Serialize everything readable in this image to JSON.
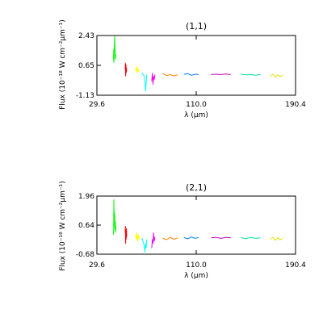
{
  "chart_data": [
    {
      "type": "line",
      "title": "(1,1)",
      "xlabel": "λ (μm)",
      "ylabel": "Flux (10⁻¹⁸ W cm⁻²μm⁻¹)",
      "xlim": [
        29.6,
        190.4
      ],
      "ylim": [
        -1.13,
        2.43
      ],
      "xticks": [
        "29.6",
        "110.0",
        "190.4"
      ],
      "yticks": [
        "2.43",
        "0.65",
        "-1.13"
      ],
      "series": [
        {
          "color": "#00ff00",
          "x": [
            43.0,
            43.1,
            43.2,
            43.3,
            43.4,
            43.6,
            43.8,
            44.0,
            44.2,
            44.5,
            44.7,
            44.9,
            45.0
          ],
          "y": [
            1.0,
            1.4,
            1.6,
            1.1,
            0.8,
            1.4,
            2.0,
            2.4,
            1.8,
            1.2,
            1.0,
            1.3,
            1.1
          ]
        },
        {
          "color": "#ff0000",
          "x": [
            52.5,
            52.7,
            52.9,
            53.1,
            53.3,
            53.5,
            53.7
          ],
          "y": [
            0.4,
            0.8,
            0.0,
            0.7,
            0.2,
            0.5,
            0.3
          ]
        },
        {
          "color": "#ffff00",
          "x": [
            61.0,
            61.5,
            62.0,
            62.5,
            63.0,
            63.5,
            64.0
          ],
          "y": [
            0.5,
            0.3,
            0.6,
            0.2,
            0.4,
            0.3,
            0.3
          ]
        },
        {
          "color": "#00ffff",
          "x": [
            66.0,
            67.0,
            68.0,
            68.5,
            69.0,
            69.5,
            70.0
          ],
          "y": [
            0.2,
            0.1,
            0.0,
            -0.3,
            -0.9,
            -0.4,
            0.1
          ]
        },
        {
          "color": "#ff00ff",
          "x": [
            74.0,
            74.5,
            75.0,
            75.5,
            76.0,
            76.5
          ],
          "y": [
            -0.3,
            0.2,
            -0.5,
            0.0,
            -0.2,
            0.1
          ]
        },
        {
          "color": "#ff8000",
          "x": [
            83.0,
            86.0,
            89.0,
            92.0,
            95.0
          ],
          "y": [
            0.16,
            0.04,
            0.1,
            0.02,
            0.08
          ]
        },
        {
          "color": "#0080ff",
          "x": [
            100.0,
            103.0,
            106.0,
            109.0,
            112.0
          ],
          "y": [
            0.12,
            0.16,
            0.06,
            0.12,
            0.1
          ]
        },
        {
          "color": "#c000c0",
          "x": [
            122.0,
            126.0,
            130.0,
            134.0,
            138.0
          ],
          "y": [
            0.1,
            0.12,
            0.1,
            0.13,
            0.1
          ]
        },
        {
          "color": "#00e0a0",
          "x": [
            146.0,
            150.0,
            154.0,
            158.0,
            162.0
          ],
          "y": [
            0.12,
            0.08,
            0.1,
            0.06,
            0.1
          ]
        },
        {
          "color": "#e0e000",
          "x": [
            170.0,
            172.0,
            174.0,
            176.0,
            178.0,
            180.0
          ],
          "y": [
            0.0,
            0.12,
            -0.04,
            0.08,
            -0.02,
            0.06
          ]
        }
      ]
    },
    {
      "type": "line",
      "title": "(2,1)",
      "xlabel": "λ (μm)",
      "ylabel": "Flux (10⁻¹⁸ W cm⁻²μm⁻¹)",
      "xlim": [
        29.6,
        190.4
      ],
      "ylim": [
        -0.68,
        1.96
      ],
      "xticks": [
        "29.6",
        "110.0",
        "190.4"
      ],
      "yticks": [
        "1.96",
        "0.64",
        "-0.68"
      ],
      "series": [
        {
          "color": "#00ff00",
          "x": [
            43.0,
            43.1,
            43.2,
            43.3,
            43.4,
            43.6,
            43.8,
            44.0,
            44.2,
            44.5,
            44.7,
            44.9,
            45.0
          ],
          "y": [
            0.2,
            0.5,
            1.0,
            1.8,
            1.5,
            0.9,
            0.6,
            1.2,
            0.4,
            0.8,
            0.3,
            0.6,
            0.5
          ]
        },
        {
          "color": "#ff0000",
          "x": [
            52.5,
            52.7,
            52.9,
            53.1,
            53.3,
            53.5,
            53.7
          ],
          "y": [
            0.3,
            0.6,
            -0.2,
            0.4,
            0.0,
            0.5,
            0.1
          ]
        },
        {
          "color": "#ffff00",
          "x": [
            61.0,
            61.5,
            62.0,
            62.5,
            63.0,
            63.5,
            64.0
          ],
          "y": [
            0.2,
            0.0,
            0.3,
            -0.1,
            0.2,
            0.0,
            0.1
          ]
        },
        {
          "color": "#00ffff",
          "x": [
            66.0,
            67.0,
            68.0,
            68.5,
            69.0,
            69.5,
            70.0
          ],
          "y": [
            0.05,
            -0.1,
            -0.3,
            -0.6,
            -0.2,
            -0.4,
            0.0
          ]
        },
        {
          "color": "#ff00ff",
          "x": [
            74.0,
            74.5,
            75.0,
            75.5,
            76.0,
            76.5
          ],
          "y": [
            -0.4,
            0.0,
            -0.2,
            0.3,
            -0.1,
            0.1
          ]
        },
        {
          "color": "#ff8000",
          "x": [
            83.0,
            86.0,
            89.0,
            92.0,
            95.0
          ],
          "y": [
            0.04,
            -0.02,
            0.08,
            0.0,
            0.06
          ]
        },
        {
          "color": "#0080ff",
          "x": [
            100.0,
            103.0,
            106.0,
            109.0,
            112.0
          ],
          "y": [
            0.08,
            0.02,
            0.1,
            0.04,
            0.08
          ]
        },
        {
          "color": "#c000c0",
          "x": [
            122.0,
            126.0,
            130.0,
            134.0,
            138.0
          ],
          "y": [
            0.06,
            0.08,
            0.04,
            0.08,
            0.06
          ]
        },
        {
          "color": "#00e0a0",
          "x": [
            146.0,
            150.0,
            154.0,
            158.0,
            162.0
          ],
          "y": [
            0.08,
            0.02,
            0.08,
            0.04,
            0.06
          ]
        },
        {
          "color": "#e0e000",
          "x": [
            170.0,
            172.0,
            174.0,
            176.0,
            178.0,
            180.0
          ],
          "y": [
            0.0,
            0.08,
            -0.04,
            0.06,
            -0.02,
            0.04
          ]
        }
      ]
    }
  ]
}
